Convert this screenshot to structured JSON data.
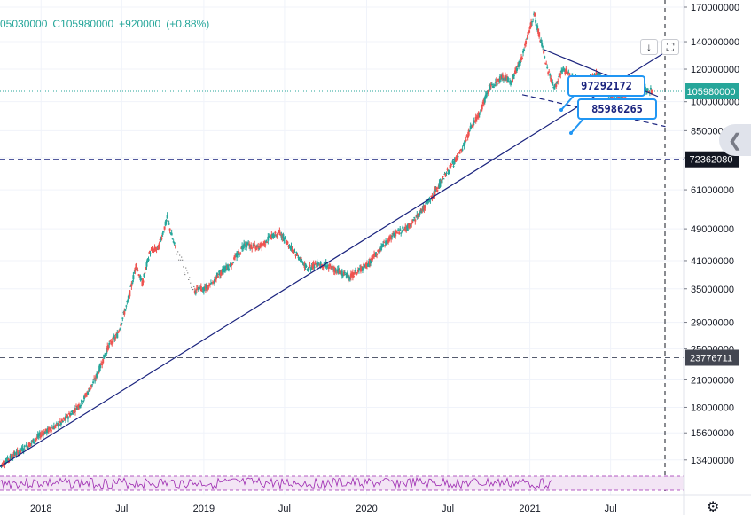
{
  "header": {
    "open": "05030000",
    "close_label": "C",
    "close": "105980000",
    "change": "+920000",
    "change_pct": "(+0.88%)"
  },
  "toolbar": {
    "download_icon": "arrow-down-icon",
    "fullscreen_icon": "fullscreen-icon"
  },
  "colors": {
    "up": "#26a69a",
    "down": "#ef5350",
    "accent": "#2962ff",
    "navy": "#1a237e",
    "rsi": "#9c27b0"
  },
  "chart_data": {
    "type": "candlestick",
    "y_scale": "log",
    "ylim": [
      12800000,
      170000000
    ],
    "y_ticks": [
      "170000000",
      "140000000",
      "120000000",
      "100000000",
      "85000000",
      "73000000",
      "61000000",
      "49000000",
      "41000000",
      "35000000",
      "29000000",
      "25000000",
      "21000000",
      "18000000",
      "15600000",
      "13400000"
    ],
    "x_ticks": [
      "2018",
      "Jul",
      "2019",
      "Jul",
      "2020",
      "Jul",
      "2021",
      "Jul"
    ],
    "x_range": [
      "2017-10",
      "2021-10"
    ],
    "last_price": "105980000",
    "horizontal_levels": [
      {
        "value": "72362080"
      },
      {
        "value": "23776711"
      }
    ],
    "callouts": [
      {
        "value": "97292172"
      },
      {
        "value": "85986265"
      }
    ],
    "price_path": [
      [
        "2017-10-01",
        13000000
      ],
      [
        "2017-11-01",
        13800000
      ],
      [
        "2017-12-01",
        14500000
      ],
      [
        "2018-01-01",
        15500000
      ],
      [
        "2018-02-15",
        16500000
      ],
      [
        "2018-04-01",
        18500000
      ],
      [
        "2018-05-01",
        21000000
      ],
      [
        "2018-06-01",
        25500000
      ],
      [
        "2018-06-20",
        27000000
      ],
      [
        "2018-07-15",
        33000000
      ],
      [
        "2018-08-01",
        40000000
      ],
      [
        "2018-08-15",
        36000000
      ],
      [
        "2018-09-01",
        43000000
      ],
      [
        "2018-09-20",
        44000000
      ],
      [
        "2018-10-10",
        52000000
      ],
      [
        "2018-10-25",
        45000000
      ],
      [
        "2018-12-10",
        34500000
      ],
      [
        "2019-01-15",
        35500000
      ],
      [
        "2019-02-01",
        38000000
      ],
      [
        "2019-03-01",
        40000000
      ],
      [
        "2019-04-01",
        45000000
      ],
      [
        "2019-05-01",
        44000000
      ],
      [
        "2019-06-01",
        47000000
      ],
      [
        "2019-06-20",
        48000000
      ],
      [
        "2019-07-15",
        44000000
      ],
      [
        "2019-08-01",
        42000000
      ],
      [
        "2019-08-20",
        39000000
      ],
      [
        "2019-09-10",
        40500000
      ],
      [
        "2019-10-01",
        40000000
      ],
      [
        "2019-11-01",
        38500000
      ],
      [
        "2019-11-25",
        37500000
      ],
      [
        "2020-01-01",
        40000000
      ],
      [
        "2020-02-01",
        44000000
      ],
      [
        "2020-03-01",
        47500000
      ],
      [
        "2020-04-01",
        49500000
      ],
      [
        "2020-05-01",
        54000000
      ],
      [
        "2020-06-01",
        60000000
      ],
      [
        "2020-07-01",
        68000000
      ],
      [
        "2020-08-01",
        76000000
      ],
      [
        "2020-08-20",
        86000000
      ],
      [
        "2020-09-10",
        94000000
      ],
      [
        "2020-10-01",
        108000000
      ],
      [
        "2020-11-01",
        115000000
      ],
      [
        "2020-11-20",
        112000000
      ],
      [
        "2020-12-15",
        130000000
      ],
      [
        "2021-01-01",
        152000000
      ],
      [
        "2021-01-10",
        163000000
      ],
      [
        "2021-01-25",
        140000000
      ],
      [
        "2021-02-10",
        118000000
      ],
      [
        "2021-02-25",
        108000000
      ],
      [
        "2021-03-15",
        120000000
      ],
      [
        "2021-04-01",
        116000000
      ],
      [
        "2021-05-01",
        111000000
      ],
      [
        "2021-06-01",
        117000000
      ],
      [
        "2021-06-20",
        106000000
      ],
      [
        "2021-07-10",
        100000000
      ],
      [
        "2021-08-01",
        105000000
      ],
      [
        "2021-09-01",
        110000000
      ],
      [
        "2021-09-20",
        107000000
      ],
      [
        "2021-10-01",
        105980000
      ]
    ],
    "trendlines": [
      {
        "style": "solid",
        "from": [
          "2017-10-01",
          12900000
        ],
        "to": [
          "2021-11-15",
          135000000
        ]
      },
      {
        "style": "solid",
        "from": [
          "2021-02-01",
          134000000
        ],
        "to": [
          "2021-10-15",
          103000000
        ]
      },
      {
        "style": "dashed",
        "from": [
          "2020-12-15",
          104000000
        ],
        "to": [
          "2021-11-01",
          87000000
        ]
      }
    ]
  }
}
